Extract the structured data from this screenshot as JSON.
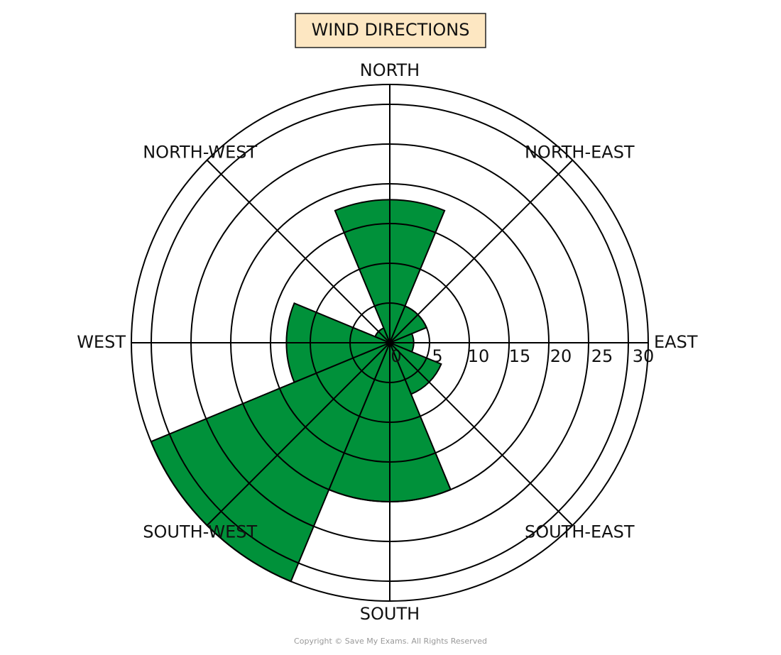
{
  "chart_data": {
    "type": "rose",
    "title": "WIND DIRECTIONS",
    "categories": [
      "NORTH",
      "NORTH-EAST",
      "EAST",
      "SOUTH-EAST",
      "SOUTH",
      "SOUTH-WEST",
      "WEST",
      "NORTH-WEST"
    ],
    "values": [
      18,
      5,
      3,
      7,
      20,
      32.5,
      13,
      2
    ],
    "color": "#00913a",
    "rlim": [
      0,
      32.5
    ],
    "rticks": [
      0,
      5,
      10,
      15,
      20,
      25,
      30
    ],
    "footer": "Copyright © Save My Exams. All Rights Reserved"
  }
}
